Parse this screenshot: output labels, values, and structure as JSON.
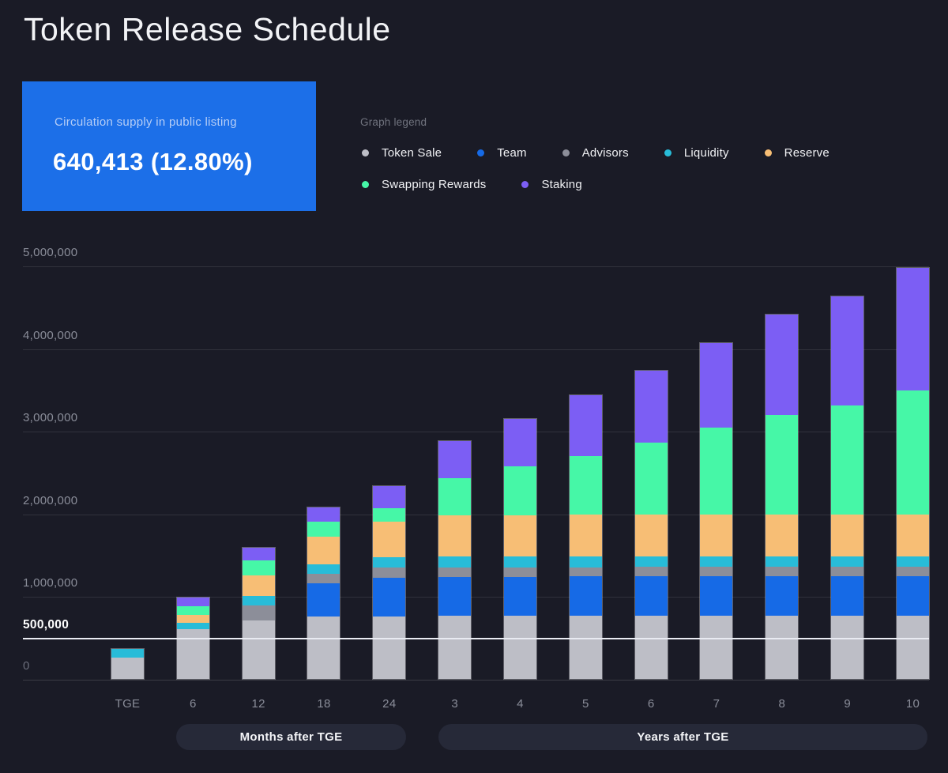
{
  "page": {
    "title": "Token Release Schedule",
    "background": "#1a1b26"
  },
  "supply_card": {
    "label": "Circulation supply in public listing",
    "value": "640,413 (12.80%)",
    "background": "#1c6fe8"
  },
  "legend": {
    "heading": "Graph legend"
  },
  "x_axis_pills": {
    "months": "Months after TGE",
    "years": "Years after TGE"
  },
  "chart_data": {
    "type": "bar",
    "stacked": true,
    "title": "Token Release Schedule",
    "categories": [
      "TGE",
      "6",
      "12",
      "18",
      "24",
      "3",
      "4",
      "5",
      "6",
      "7",
      "8",
      "9",
      "10"
    ],
    "x_axis_groups": [
      {
        "label": "Months after TGE",
        "categories": [
          "6",
          "12",
          "18",
          "24"
        ]
      },
      {
        "label": "Years after TGE",
        "categories": [
          "3",
          "4",
          "5",
          "6",
          "7",
          "8",
          "9",
          "10"
        ]
      }
    ],
    "series": [
      {
        "name": "Token Sale",
        "color": "#bdbec6",
        "values": [
          275000,
          610000,
          715000,
          765000,
          765000,
          765000,
          765000,
          765000,
          765000,
          765000,
          765000,
          765000,
          765000
        ]
      },
      {
        "name": "Team",
        "color": "#166ae6",
        "values": [
          0,
          0,
          0,
          400000,
          470000,
          480000,
          480000,
          480000,
          480000,
          480000,
          480000,
          480000,
          480000
        ]
      },
      {
        "name": "Advisors",
        "color": "#8c8e99",
        "values": [
          0,
          0,
          180000,
          115000,
          120000,
          115000,
          115000,
          115000,
          115000,
          115000,
          115000,
          115000,
          115000
        ]
      },
      {
        "name": "Liquidity",
        "color": "#28bcd8",
        "values": [
          105000,
          85000,
          125000,
          115000,
          125000,
          130000,
          130000,
          130000,
          130000,
          130000,
          130000,
          130000,
          130000
        ]
      },
      {
        "name": "Reserve",
        "color": "#f7be75",
        "values": [
          0,
          95000,
          250000,
          345000,
          440000,
          505000,
          505000,
          505000,
          510000,
          510000,
          510000,
          510000,
          510000
        ]
      },
      {
        "name": "Swapping Rewards",
        "color": "#46f7a7",
        "values": [
          0,
          105000,
          180000,
          180000,
          160000,
          450000,
          590000,
          715000,
          870000,
          1050000,
          1210000,
          1320000,
          1500000
        ]
      },
      {
        "name": "Staking",
        "color": "#7c5ef4",
        "values": [
          0,
          105000,
          160000,
          170000,
          275000,
          450000,
          575000,
          745000,
          880000,
          1030000,
          1215000,
          1330000,
          1490000
        ]
      }
    ],
    "ylim": [
      0,
      5000000
    ],
    "y_ticks": [
      0,
      500000,
      1000000,
      2000000,
      3000000,
      4000000,
      5000000
    ],
    "highlighted_y_tick": 500000,
    "grid": "horizontal",
    "legend_position": "top-right",
    "legend_rows": [
      [
        "Token Sale",
        "Team",
        "Advisors",
        "Liquidity",
        "Reserve"
      ],
      [
        "Swapping Rewards",
        "Staking"
      ]
    ]
  }
}
